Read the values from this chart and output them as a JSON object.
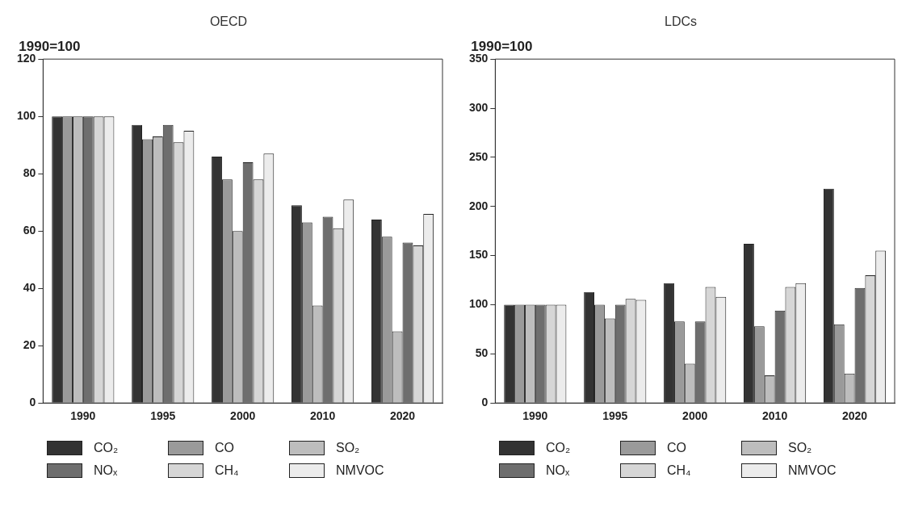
{
  "chart_data": [
    {
      "type": "bar",
      "title": "OECD",
      "ylabel": "1990=100",
      "categories": [
        "1990",
        "1995",
        "2000",
        "2010",
        "2020"
      ],
      "ylim": [
        0,
        120
      ],
      "yticks": [
        0,
        20,
        40,
        60,
        80,
        100,
        120
      ],
      "grid": false,
      "legend": "bottom",
      "series": [
        {
          "name": "CO₂",
          "color": "#333333",
          "values": [
            100,
            97,
            86,
            69,
            64
          ]
        },
        {
          "name": "CO",
          "color": "#9a9a9a",
          "values": [
            100,
            92,
            78,
            63,
            58
          ]
        },
        {
          "name": "SO₂",
          "color": "#bdbdbd",
          "values": [
            100,
            93,
            60,
            34,
            25
          ]
        },
        {
          "name": "NOₓ",
          "color": "#6e6e6e",
          "values": [
            100,
            97,
            84,
            65,
            56
          ]
        },
        {
          "name": "CH₄",
          "color": "#d6d6d6",
          "values": [
            100,
            91,
            78,
            61,
            55
          ]
        },
        {
          "name": "NMVOC",
          "color": "#ececec",
          "values": [
            100,
            95,
            87,
            71,
            66
          ]
        }
      ]
    },
    {
      "type": "bar",
      "title": "LDCs",
      "ylabel": "1990=100",
      "categories": [
        "1990",
        "1995",
        "2000",
        "2010",
        "2020"
      ],
      "ylim": [
        0,
        350
      ],
      "yticks": [
        0,
        50,
        100,
        150,
        200,
        250,
        300,
        350
      ],
      "grid": false,
      "legend": "bottom",
      "series": [
        {
          "name": "CO₂",
          "color": "#333333",
          "values": [
            100,
            113,
            122,
            162,
            218
          ]
        },
        {
          "name": "CO",
          "color": "#9a9a9a",
          "values": [
            100,
            100,
            83,
            78,
            80
          ]
        },
        {
          "name": "SO₂",
          "color": "#bdbdbd",
          "values": [
            100,
            86,
            40,
            28,
            30
          ]
        },
        {
          "name": "NOₓ",
          "color": "#6e6e6e",
          "values": [
            100,
            100,
            83,
            94,
            117
          ]
        },
        {
          "name": "CH₄",
          "color": "#d6d6d6",
          "values": [
            100,
            106,
            118,
            118,
            130
          ]
        },
        {
          "name": "NMVOC",
          "color": "#ececec",
          "values": [
            100,
            105,
            108,
            122,
            155
          ]
        }
      ]
    }
  ]
}
